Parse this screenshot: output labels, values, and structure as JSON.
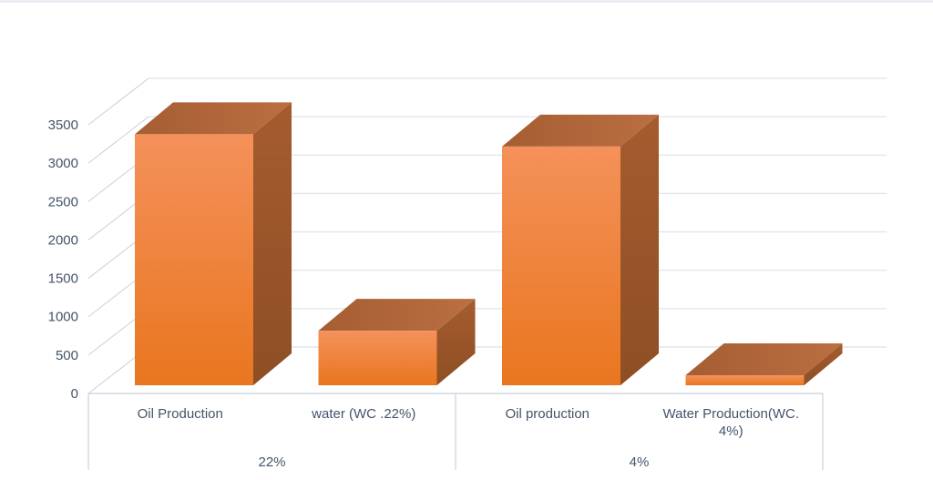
{
  "chart_data": {
    "type": "bar",
    "variant": "3d-clustered-column",
    "title": "",
    "xlabel": "",
    "ylabel": "",
    "categories": [
      "Oil Production",
      "water (WC .22%)",
      "Oil production",
      "Water Production(WC. 4%)"
    ],
    "values": [
      3270,
      710,
      3110,
      130
    ],
    "groups": [
      {
        "label": "22%",
        "category_indexes": [
          0,
          1
        ]
      },
      {
        "label": "4%",
        "category_indexes": [
          2,
          3
        ]
      }
    ],
    "ylim": [
      0,
      3500
    ],
    "ytick_step": 500,
    "yticks": [
      0,
      500,
      1000,
      1500,
      2000,
      2500,
      3000,
      3500
    ],
    "grid": true,
    "legend": false,
    "colors": {
      "bar_front_light": "#F4915A",
      "bar_front_dark": "#E9761F",
      "bar_top_light": "#BB6F42",
      "bar_top_dark": "#A55D32",
      "bar_side_light": "#A55C2F",
      "bar_side_dark": "#8E4E24",
      "gridline": "#E2E6ED",
      "axis_line": "#C8D0DC",
      "top_border": "#E6EAF0",
      "text": "#44546A"
    }
  }
}
